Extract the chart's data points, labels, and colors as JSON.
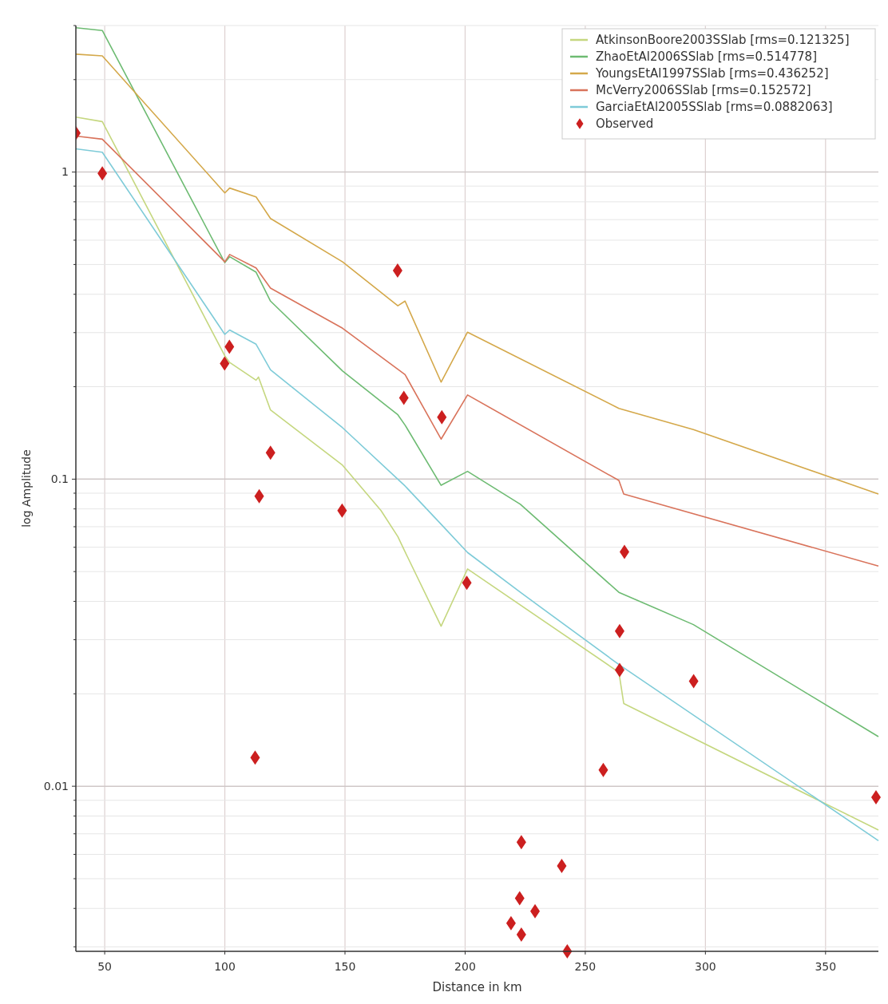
{
  "chart_data": {
    "type": "line",
    "xlabel": "Distance in km",
    "ylabel": "log Amplitude",
    "log": "y",
    "grid": true,
    "legend": "top right",
    "xlim": [
      38,
      372
    ],
    "xticks": [
      50,
      100,
      150,
      200,
      250,
      300,
      350
    ],
    "ylim": [
      0.0029,
      3.0
    ],
    "yticks": [
      {
        "value": 0.003,
        "label": null
      },
      {
        "value": 0.004,
        "label": null
      },
      {
        "value": 0.005,
        "label": null
      },
      {
        "value": 0.006,
        "label": null
      },
      {
        "value": 0.007,
        "label": null
      },
      {
        "value": 0.008,
        "label": null
      },
      {
        "value": 0.009,
        "label": null
      },
      0.01,
      {
        "value": 0.02,
        "label": null
      },
      {
        "value": 0.03,
        "label": null
      },
      {
        "value": 0.04,
        "label": null
      },
      {
        "value": 0.05,
        "label": null
      },
      {
        "value": 0.06,
        "label": null
      },
      {
        "value": 0.07,
        "label": null
      },
      {
        "value": 0.08,
        "label": null
      },
      {
        "value": 0.09,
        "label": null
      },
      0.1,
      {
        "value": 0.2,
        "label": null
      },
      {
        "value": 0.3,
        "label": null
      },
      {
        "value": 0.4,
        "label": null
      },
      {
        "value": 0.5,
        "label": null
      },
      {
        "value": 0.6,
        "label": null
      },
      {
        "value": 0.7,
        "label": null
      },
      {
        "value": 0.8,
        "label": null
      },
      {
        "value": 0.9,
        "label": null
      },
      1,
      {
        "value": 2,
        "label": null
      },
      {
        "value": 3,
        "label": null
      }
    ],
    "series": [
      {
        "name": "AtkinsonBoore2003SSlab [rms=0.121325]",
        "color": "#c5d77f",
        "x": [
          38,
          49,
          100,
          102,
          113,
          114,
          119,
          149,
          165,
          172,
          175,
          190,
          201,
          264,
          266,
          372
        ],
        "values": [
          1.51,
          1.46,
          0.252,
          0.24,
          0.21,
          0.215,
          0.168,
          0.111,
          0.079,
          0.065,
          0.058,
          0.0332,
          0.051,
          0.0235,
          0.0186,
          0.0072
        ]
      },
      {
        "name": "ZhaoEtAl2006SSlab [rms=0.514778]",
        "color": "#6dbb72",
        "x": [
          38,
          49,
          100,
          102,
          113,
          119,
          149,
          172,
          175,
          190,
          201,
          223,
          264,
          295,
          372
        ],
        "values": [
          2.95,
          2.89,
          0.507,
          0.53,
          0.472,
          0.38,
          0.225,
          0.162,
          0.15,
          0.0955,
          0.106,
          0.0828,
          0.0428,
          0.0336,
          0.0145
        ]
      },
      {
        "name": "YoungsEtAl1997SSlab [rms=0.436252]",
        "color": "#d4a84a",
        "x": [
          38,
          49,
          100,
          102,
          113,
          119,
          149,
          172,
          175,
          190,
          201,
          264,
          295,
          372
        ],
        "values": [
          2.42,
          2.39,
          0.855,
          0.887,
          0.83,
          0.706,
          0.51,
          0.367,
          0.38,
          0.207,
          0.301,
          0.17,
          0.145,
          0.0895
        ]
      },
      {
        "name": "McVerry2006SSlab [rms=0.152572]",
        "color": "#d9735b",
        "x": [
          38,
          49,
          100,
          102,
          113,
          119,
          149,
          175,
          190,
          201,
          264,
          266,
          372
        ],
        "values": [
          1.31,
          1.28,
          0.51,
          0.539,
          0.487,
          0.419,
          0.31,
          0.219,
          0.135,
          0.188,
          0.099,
          0.0895,
          0.0521
        ]
      },
      {
        "name": "GarciaEtAl2005SSlab [rms=0.0882063]",
        "color": "#7ecbd8",
        "x": [
          38,
          49,
          100,
          102,
          113,
          119,
          149,
          175,
          190,
          201,
          223,
          264,
          372
        ],
        "values": [
          1.19,
          1.16,
          0.296,
          0.306,
          0.275,
          0.227,
          0.147,
          0.095,
          0.0713,
          0.0577,
          0.0428,
          0.0249,
          0.00665
        ]
      },
      {
        "name": "Observed",
        "type": "scatter",
        "marker": "diamond",
        "color": "#cc1f1f",
        "x": [
          38,
          49,
          99.9,
          101.9,
          114.3,
          119,
          112.6,
          148.8,
          171.9,
          174.5,
          190.3,
          200.7,
          266.3,
          264.3,
          264.3,
          295.1,
          257.5,
          371,
          223.4,
          240.2,
          222.7,
          229.1,
          219.1,
          223.4,
          242.5
        ],
        "values": [
          1.34,
          0.99,
          0.238,
          0.27,
          0.088,
          0.122,
          0.0124,
          0.079,
          0.478,
          0.184,
          0.159,
          0.046,
          0.058,
          0.032,
          0.0239,
          0.022,
          0.0113,
          0.0092,
          0.00657,
          0.0055,
          0.00432,
          0.00392,
          0.00358,
          0.00329,
          0.0029
        ]
      }
    ]
  }
}
